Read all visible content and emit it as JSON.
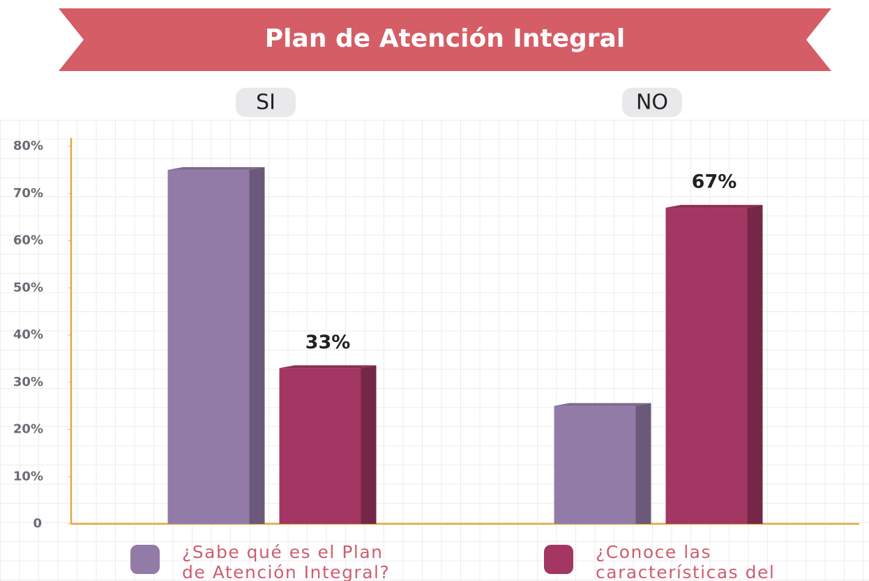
{
  "chart_data": {
    "type": "bar3d",
    "title": "Plan de Atención Integral",
    "categories": [
      "SI",
      "NO"
    ],
    "series": [
      {
        "name": "¿Sabe qué es el Plan de Atención Integral?",
        "color": "#937ba8",
        "values": [
          75,
          25
        ]
      },
      {
        "name": "¿Conoce las características del plan?",
        "color": "#a33662",
        "values": [
          33,
          67
        ],
        "value_labels": [
          "33%",
          "67%"
        ]
      }
    ],
    "ylim": [
      0,
      80
    ],
    "yticks": [
      0,
      {
        "value": 10,
        "label": "10%"
      },
      {
        "value": 20,
        "label": "20%"
      },
      {
        "value": 30,
        "label": "30%"
      },
      {
        "value": 40,
        "label": "40%"
      },
      {
        "value": 50,
        "label": "50%"
      },
      {
        "value": 60,
        "label": "60%"
      },
      {
        "value": 70,
        "label": "70%"
      },
      {
        "value": 80,
        "label": "80%"
      }
    ]
  }
}
